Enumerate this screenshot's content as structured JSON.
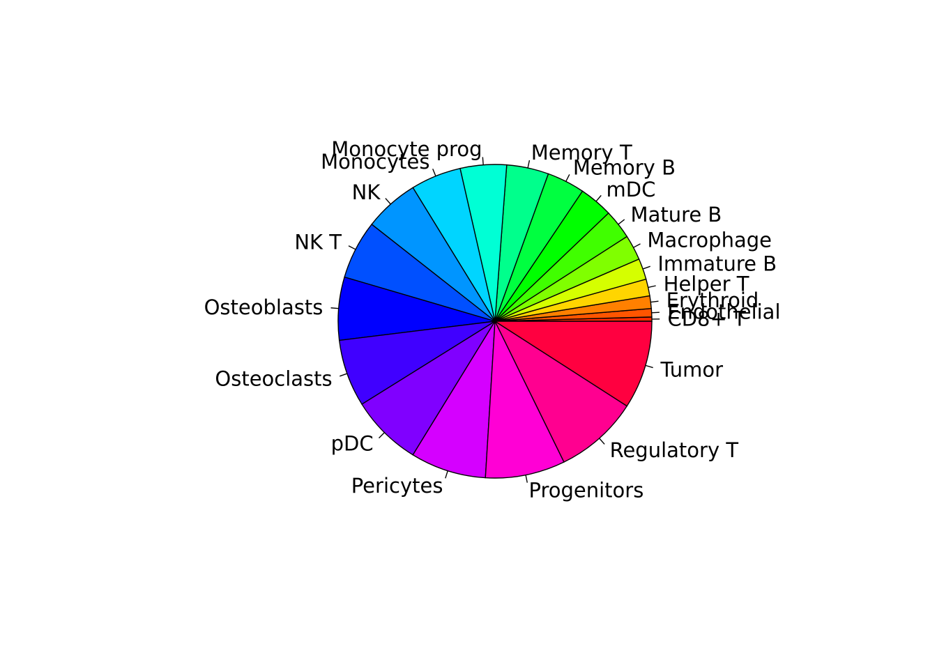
{
  "chart_data": {
    "type": "pie",
    "direction": "counterclockwise",
    "start_angle_deg": 0,
    "legend": "none",
    "slices": [
      {
        "label": "CD8+ T",
        "value": 0.5,
        "color": "#FF2A00"
      },
      {
        "label": "Endothelial",
        "value": 1.0,
        "color": "#FF5500"
      },
      {
        "label": "Erythroid",
        "value": 1.5,
        "color": "#FF8000"
      },
      {
        "label": "Helper T",
        "value": 2.0,
        "color": "#FFD500"
      },
      {
        "label": "Immature B",
        "value": 2.5,
        "color": "#D5FF00"
      },
      {
        "label": "Macrophage",
        "value": 3.0,
        "color": "#80FF00"
      },
      {
        "label": "Mature B",
        "value": 3.5,
        "color": "#40FF00"
      },
      {
        "label": "mDC",
        "value": 4.0,
        "color": "#00FF00"
      },
      {
        "label": "Memory B",
        "value": 4.5,
        "color": "#00FF40"
      },
      {
        "label": "Memory T",
        "value": 5.0,
        "color": "#00FF8C"
      },
      {
        "label": "Monocyte prog",
        "value": 5.5,
        "color": "#00FFD5"
      },
      {
        "label": "Monocytes",
        "value": 6.0,
        "color": "#00D5FF"
      },
      {
        "label": "NK",
        "value": 6.5,
        "color": "#0095FF"
      },
      {
        "label": "NK T",
        "value": 7.0,
        "color": "#0050FF"
      },
      {
        "label": "Osteoblasts",
        "value": 7.5,
        "color": "#0000FF"
      },
      {
        "label": "Osteoclasts",
        "value": 8.0,
        "color": "#4000FF"
      },
      {
        "label": "pDC",
        "value": 8.5,
        "color": "#8000FF"
      },
      {
        "label": "Pericytes",
        "value": 9.0,
        "color": "#D500FF"
      },
      {
        "label": "Progenitors",
        "value": 9.5,
        "color": "#FF00D5"
      },
      {
        "label": "Regulatory T",
        "value": 10.0,
        "color": "#FF0090"
      },
      {
        "label": "Tumor",
        "value": 10.5,
        "color": "#FF0040"
      }
    ]
  }
}
